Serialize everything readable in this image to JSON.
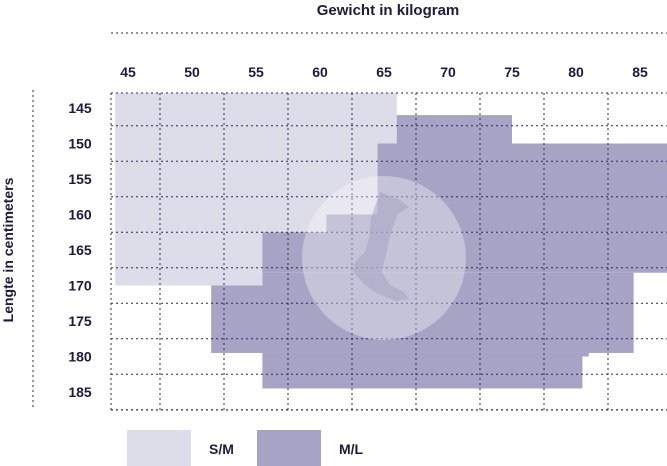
{
  "chart_data": {
    "type": "heatmap",
    "title": "",
    "xlabel": "Gewicht in kilogram",
    "ylabel": "Lengte in centimeters",
    "x_ticks": [
      45,
      50,
      55,
      60,
      65,
      70,
      75,
      80,
      85
    ],
    "y_ticks": [
      145,
      150,
      155,
      160,
      165,
      170,
      175,
      180,
      185
    ],
    "xlim": [
      44,
      87.5
    ],
    "ylim": [
      142.5,
      187.5
    ],
    "grid": true,
    "legend_position": "bottom-left",
    "series": [
      {
        "name": "S/M",
        "color": "#dddce9",
        "regions": [
          {
            "x": [
              44,
              66
            ],
            "y": [
              142.5,
              160
            ]
          },
          {
            "x": [
              44,
              64.5
            ],
            "y": [
              160,
              162.5
            ]
          },
          {
            "x": [
              44,
              55.5
            ],
            "y": [
              162.5,
              170
            ]
          }
        ]
      },
      {
        "name": "M/L",
        "color": "#a6a3c4",
        "regions": [
          {
            "x": [
              66,
              75
            ],
            "y": [
              146,
              150
            ]
          },
          {
            "x": [
              64.5,
              87.5
            ],
            "y": [
              150,
              160
            ]
          },
          {
            "x": [
              60.5,
              87.5
            ],
            "y": [
              160,
              162.5
            ]
          },
          {
            "x": [
              55.5,
              87.5
            ],
            "y": [
              162.5,
              168.2
            ]
          },
          {
            "x": [
              55.5,
              84.5
            ],
            "y": [
              168.2,
              170
            ]
          },
          {
            "x": [
              51.5,
              84.5
            ],
            "y": [
              170,
              179.5
            ]
          },
          {
            "x": [
              55.5,
              81
            ],
            "y": [
              179.5,
              180
            ]
          },
          {
            "x": [
              55.5,
              80.5
            ],
            "y": [
              180,
              184.5
            ]
          }
        ]
      }
    ]
  },
  "legend": {
    "items": [
      {
        "label": "S/M",
        "color": "#dddce9"
      },
      {
        "label": "M/L",
        "color": "#a6a3c4"
      }
    ]
  },
  "icon": "foot-icon"
}
